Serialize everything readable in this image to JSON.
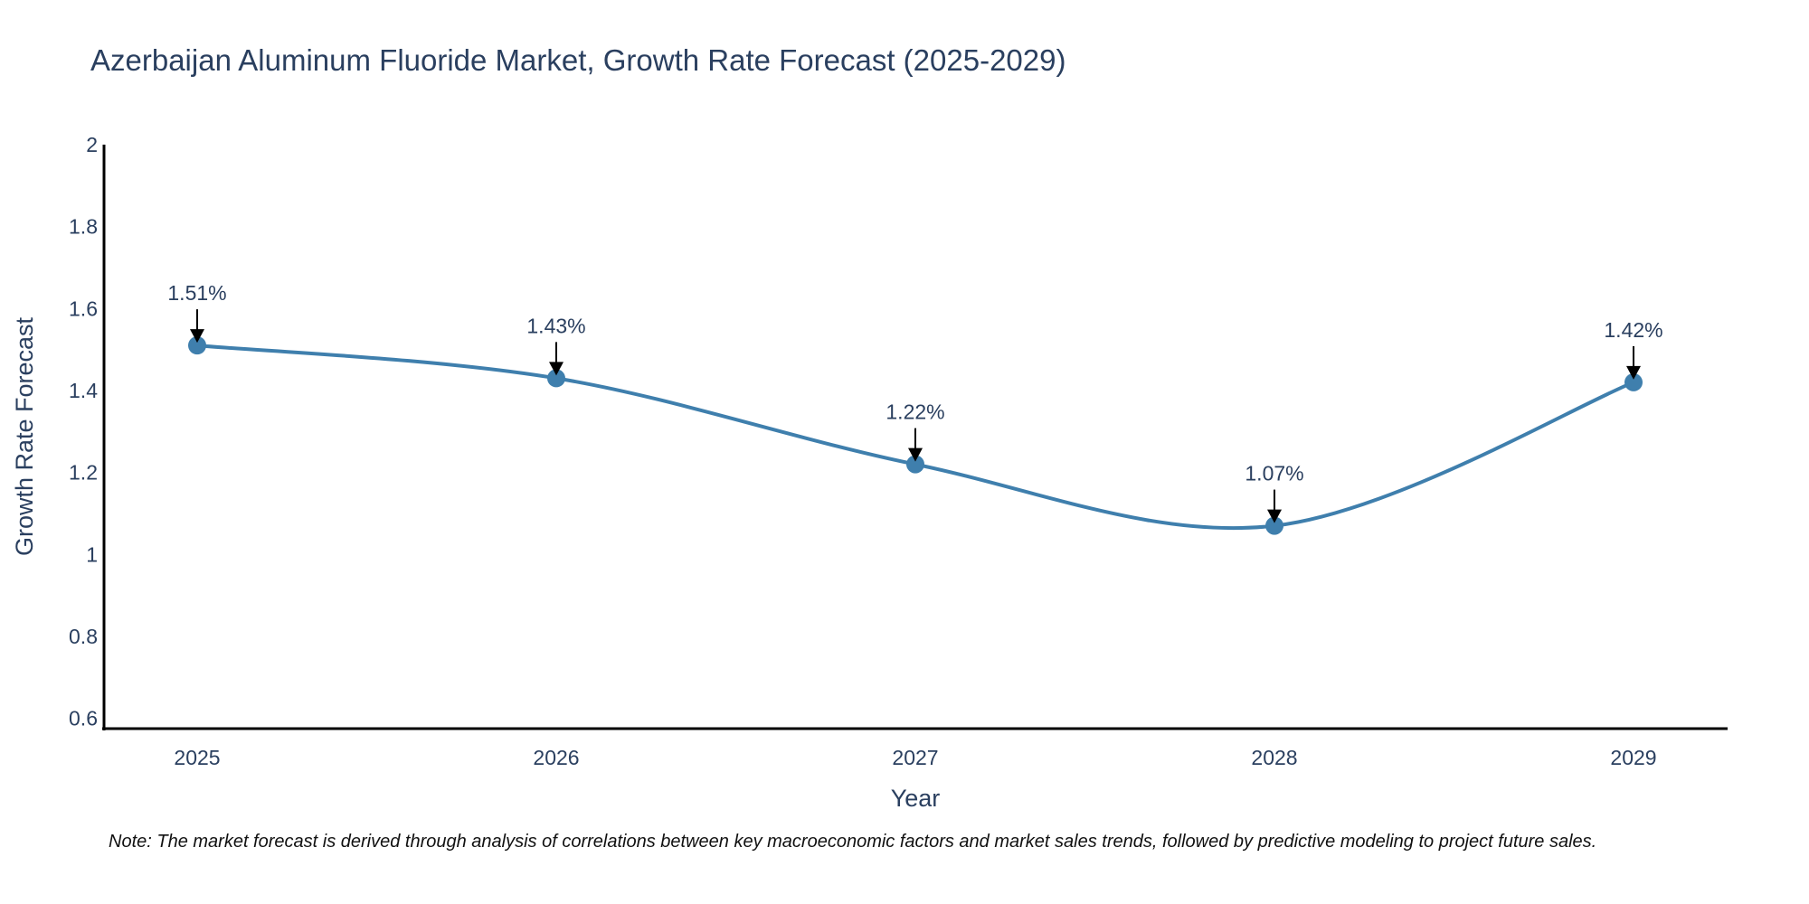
{
  "chart_data": {
    "type": "line",
    "title": "Azerbaijan Aluminum Fluoride Market, Growth Rate Forecast (2025-2029)",
    "xlabel": "Year",
    "ylabel": "Growth Rate Forecast",
    "categories": [
      "2025",
      "2026",
      "2027",
      "2028",
      "2029"
    ],
    "values": [
      1.51,
      1.43,
      1.22,
      1.07,
      1.42
    ],
    "data_labels": [
      "1.51%",
      "1.43%",
      "1.22%",
      "1.07%",
      "1.42%"
    ],
    "y_ticks": [
      0.6,
      0.8,
      1,
      1.2,
      1.4,
      1.6,
      1.8,
      2
    ],
    "y_tick_labels": [
      "0.6",
      "0.8",
      "1",
      "1.2",
      "1.4",
      "1.6",
      "1.8",
      "2"
    ],
    "ylim": [
      0.575,
      2
    ],
    "grid": false,
    "line_color": "#3f7fad",
    "note": "Note: The market forecast is derived through analysis of correlations between key macroeconomic factors and market sales trends, followed by predictive modeling to project future sales."
  }
}
